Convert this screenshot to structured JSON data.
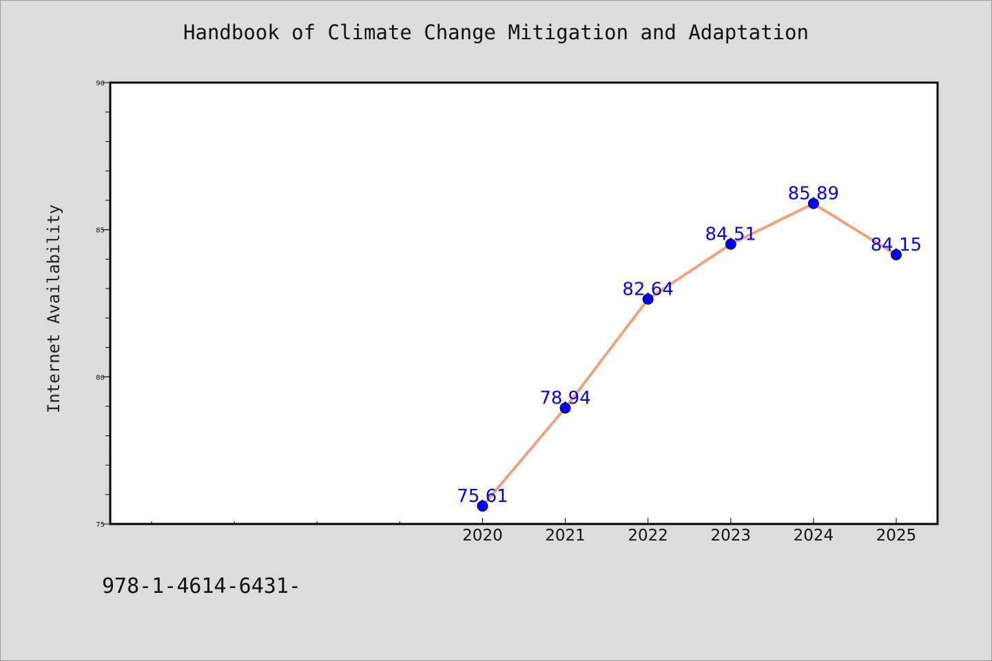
{
  "page": {
    "title": "Handbook of Climate Change Mitigation and Adaptation",
    "footer": "978-1-4614-6431-"
  },
  "colors": {
    "background": "#dcdcdc",
    "plot_background": "#ffffff",
    "line": "#f4a07c",
    "marker": "#0000ff",
    "data_label": "#0000ff"
  },
  "chart_data": {
    "type": "line",
    "title": "Handbook of Climate Change Mitigation and Adaptation",
    "xlabel": "",
    "ylabel": "Internet Availability",
    "categories": [
      "2020",
      "2021",
      "2022",
      "2023",
      "2024",
      "2025"
    ],
    "series": [
      {
        "values": [
          75.61,
          78.94,
          82.64,
          84.51,
          85.89,
          84.15
        ]
      }
    ],
    "data_labels": [
      "75.61",
      "78.94",
      "82.64",
      "84.51",
      "85.89",
      "84.15"
    ],
    "x_positions": [
      2020,
      2021,
      2022,
      2023,
      2024,
      2025
    ],
    "xlim": [
      2015.5,
      2025.5
    ],
    "ylim": [
      75,
      90
    ],
    "yticks": [
      "75",
      "80",
      "85",
      "90"
    ],
    "grid": false,
    "legend": "none"
  }
}
